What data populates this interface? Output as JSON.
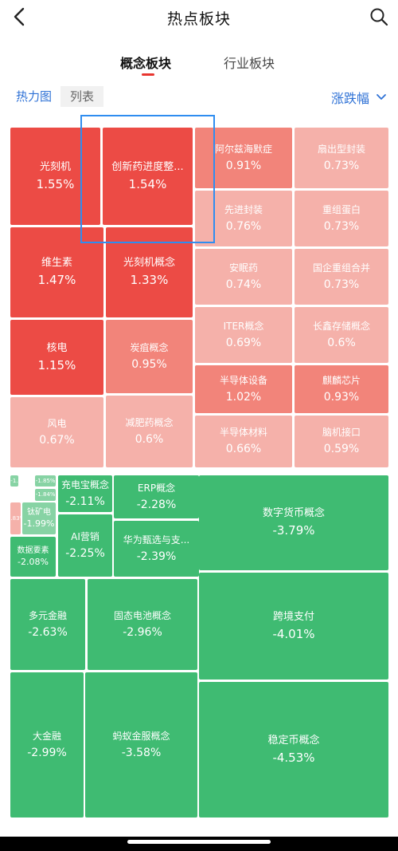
{
  "header": {
    "title": "热点板块",
    "back_icon": "chevron-left-icon",
    "search_icon": "search-icon"
  },
  "tabs": [
    {
      "label": "概念板块",
      "active": true
    },
    {
      "label": "行业板块",
      "active": false
    }
  ],
  "view_toggle": {
    "heatmap": "热力图",
    "list": "列表",
    "active": "heatmap"
  },
  "sort": {
    "label": "涨跌幅",
    "icon": "chevron-down-icon"
  },
  "colors": {
    "accent_blue": "#2f72d6",
    "tab_underline": "#e8352f",
    "up_strong": "#ec4b45",
    "down_strong": "#3fbb72",
    "selection": "#2f8df0"
  },
  "tiles": [
    {
      "name": "光刻机",
      "change": "1.55%"
    },
    {
      "name": "创新药进度整...",
      "change": "1.54%"
    },
    {
      "name": "阿尔兹海默症",
      "change": "0.91%"
    },
    {
      "name": "扇出型封装",
      "change": "0.73%"
    },
    {
      "name": "先进封装",
      "change": "0.76%"
    },
    {
      "name": "重组蛋白",
      "change": "0.73%"
    },
    {
      "name": "维生素",
      "change": "1.47%"
    },
    {
      "name": "光刻机概念",
      "change": "1.33%"
    },
    {
      "name": "安眠药",
      "change": "0.74%"
    },
    {
      "name": "国企重组合并",
      "change": "0.73%"
    },
    {
      "name": "核电",
      "change": "1.15%"
    },
    {
      "name": "炭疽概念",
      "change": "0.95%"
    },
    {
      "name": "ITER概念",
      "change": "0.69%"
    },
    {
      "name": "长鑫存储概念",
      "change": "0.6%"
    },
    {
      "name": "风电",
      "change": "0.67%"
    },
    {
      "name": "减肥药概念",
      "change": "0.6%"
    },
    {
      "name": "半导体设备",
      "change": "1.02%"
    },
    {
      "name": "麒麟芯片",
      "change": "0.93%"
    },
    {
      "name": "半导体材料",
      "change": "0.66%"
    },
    {
      "name": "脑机接口",
      "change": "0.59%"
    },
    {
      "name": "-1.9",
      "change": ""
    },
    {
      "name": "-1.85%",
      "change": ""
    },
    {
      "name": "-1.84%",
      "change": ""
    },
    {
      "name": "钛矿电",
      "change": "-1.99%"
    },
    {
      "name": ".83%",
      "change": ""
    },
    {
      "name": "数据要素",
      "change": "-2.08%"
    },
    {
      "name": "充电宝概念",
      "change": "-2.11%"
    },
    {
      "name": "AI营销",
      "change": "-2.25%"
    },
    {
      "name": "ERP概念",
      "change": "-2.28%"
    },
    {
      "name": "华为甄选与支...",
      "change": "-2.39%"
    },
    {
      "name": "数字货币概念",
      "change": "-3.79%"
    },
    {
      "name": "多元金融",
      "change": "-2.63%"
    },
    {
      "name": "固态电池概念",
      "change": "-2.96%"
    },
    {
      "name": "跨境支付",
      "change": "-4.01%"
    },
    {
      "name": "大金融",
      "change": "-2.99%"
    },
    {
      "name": "蚂蚁金服概念",
      "change": "-3.58%"
    },
    {
      "name": "稳定币概念",
      "change": "-4.53%"
    }
  ]
}
